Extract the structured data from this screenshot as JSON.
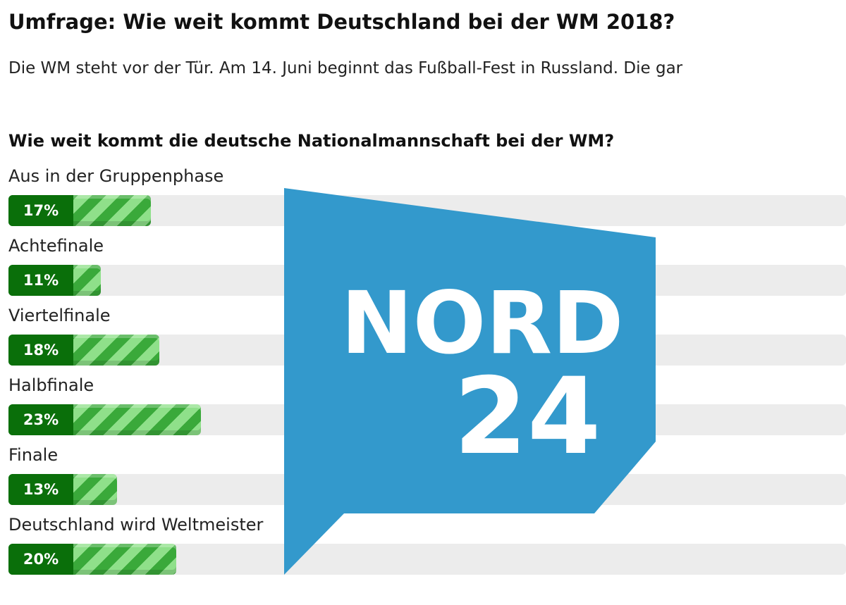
{
  "article": {
    "title": "Umfrage: Wie weit kommt Deutschland bei der WM 2018?",
    "intro": "Die WM steht vor der Tür. Am 14. Juni beginnt das Fußball-Fest in Russland. Die gar"
  },
  "poll": {
    "question": "Wie weit kommt die deutsche Nationalmannschaft bei der WM?",
    "options": [
      {
        "label": "Aus in der Gruppenphase",
        "percent_label": "17%",
        "share": 0.17
      },
      {
        "label": "Achtefinale",
        "percent_label": "11%",
        "share": 0.11
      },
      {
        "label": "Viertelfinale",
        "percent_label": "18%",
        "share": 0.18
      },
      {
        "label": "Halbfinale",
        "percent_label": "23%",
        "share": 0.23
      },
      {
        "label": "Finale",
        "percent_label": "13%",
        "share": 0.13
      },
      {
        "label": "Deutschland wird Weltmeister",
        "percent_label": "20%",
        "share": 0.2
      }
    ],
    "bar_color": "#3aa93a",
    "badge_color": "#0a6f0a",
    "track_color": "#ececec"
  },
  "logo": {
    "line1": "NORD",
    "line2": "24",
    "color": "#3399cc"
  }
}
